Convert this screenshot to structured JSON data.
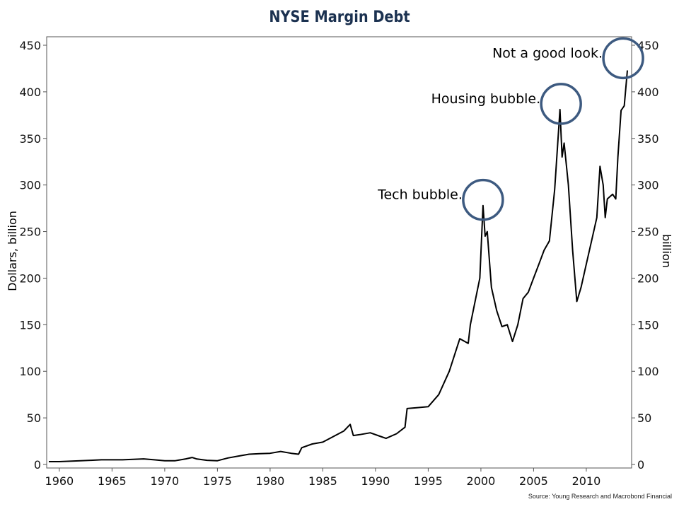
{
  "chart_data": {
    "type": "line",
    "title": "NYSE Margin Debt",
    "ylabel": "Dollars, billion",
    "ylabel_right": "billion",
    "xlabel": "",
    "xlim": [
      1958.8,
      2014.3
    ],
    "ylim": [
      0,
      450
    ],
    "x_ticks": [
      "1960",
      "1965",
      "1970",
      "1975",
      "1980",
      "1985",
      "1990",
      "1995",
      "2000",
      "2005",
      "2010"
    ],
    "y_ticks": [
      "0",
      "50",
      "100",
      "150",
      "200",
      "250",
      "300",
      "350",
      "400",
      "450"
    ],
    "grid": false,
    "line_color": "#000000",
    "annotation_color": "#3d5a80",
    "series": [
      {
        "x": [
          1959,
          1960,
          1961,
          1962,
          1963,
          1964,
          1965,
          1966,
          1967,
          1968,
          1969,
          1970,
          1971,
          1972,
          1972.6,
          1973,
          1974,
          1975,
          1976,
          1977,
          1978,
          1979,
          1980,
          1981,
          1982,
          1982.7,
          1983,
          1984,
          1985,
          1986,
          1987,
          1987.6,
          1987.9,
          1988.5,
          1989.5,
          1990.5,
          1991,
          1992,
          1992.8,
          1993,
          1994,
          1995,
          1996,
          1997,
          1998,
          1998.8,
          1999,
          1999.5,
          1999.9,
          2000.2,
          2000.4,
          2000.6,
          2001,
          2001.5,
          2002,
          2002.5,
          2003,
          2003.5,
          2004,
          2004.5,
          2005,
          2005.5,
          2006,
          2006.5,
          2007,
          2007.5,
          2007.7,
          2007.9,
          2008.3,
          2008.7,
          2009.1,
          2009.5,
          2010,
          2010.5,
          2011,
          2011.3,
          2011.6,
          2011.8,
          2012,
          2012.5,
          2012.8,
          2013,
          2013.3,
          2013.6,
          2013.9
        ],
        "y": [
          3,
          3,
          3.5,
          4,
          4.5,
          5,
          5,
          5,
          5.5,
          6,
          5,
          4,
          4,
          6,
          7.5,
          6,
          4.5,
          4,
          7,
          9,
          11,
          11.5,
          12,
          14,
          12,
          11,
          18,
          22,
          24,
          30,
          36,
          43,
          31,
          32,
          34,
          30,
          28,
          33,
          40,
          60,
          61,
          62,
          75,
          100,
          135,
          130,
          150,
          178,
          200,
          278,
          245,
          250,
          190,
          165,
          148,
          150,
          132,
          150,
          178,
          185,
          200,
          215,
          230,
          240,
          295,
          381,
          330,
          345,
          300,
          230,
          175,
          190,
          215,
          240,
          265,
          320,
          300,
          265,
          285,
          290,
          285,
          330,
          380,
          385,
          423
        ]
      }
    ],
    "annotations": [
      {
        "label": "Tech bubble.",
        "x": 2000.2,
        "y": 278
      },
      {
        "label": "Housing bubble.",
        "x": 2007.6,
        "y": 381
      },
      {
        "label": "Not a good look.",
        "x": 2013.5,
        "y": 430
      }
    ],
    "source": "Source: Young Research and Macrobond Financial"
  }
}
